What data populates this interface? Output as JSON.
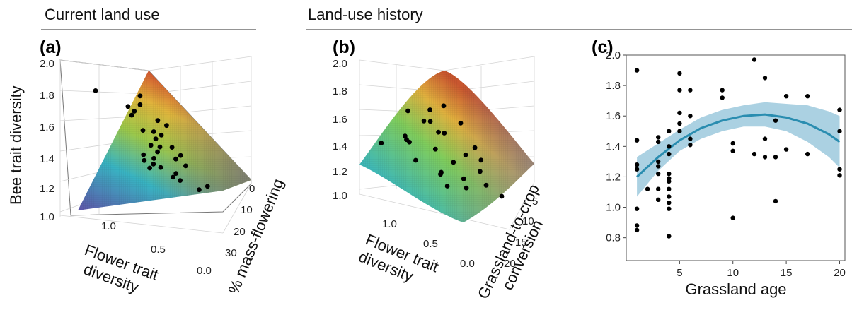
{
  "headers": {
    "current": "Current land use",
    "history": "Land-use history"
  },
  "panels": {
    "a": {
      "label": "(a)",
      "z_axis_title": "Bee trait diversity",
      "x_axis_title_line1": "Flower trait",
      "x_axis_title_line2": "diversity",
      "y_axis_title": "% mass-flowering",
      "z_ticks": [
        "1.0",
        "1.2",
        "1.4",
        "1.6",
        "1.8",
        "2.0"
      ],
      "x_ticks": [
        "1.0",
        "0.5",
        "0.0"
      ],
      "y_ticks": [
        "0",
        "10",
        "20",
        "30"
      ]
    },
    "b": {
      "label": "(b)",
      "x_axis_title_line1": "Flower trait",
      "x_axis_title_line2": "diversity",
      "y_axis_title_line1": "Grassland-to-crop",
      "y_axis_title_line2": "conversion",
      "z_ticks": [
        "1.0",
        "1.2",
        "1.4",
        "1.6",
        "1.8",
        "2.0"
      ],
      "x_ticks": [
        "1.0",
        "0.5",
        "0.0"
      ],
      "y_ticks": [
        "5",
        "10",
        "15",
        "20"
      ]
    },
    "c": {
      "label": "(c)",
      "x_axis_title": "Grassland age"
    }
  },
  "colors": {
    "line": "#2a8db0",
    "band": "#8fc1d8",
    "points": "#000000",
    "surface_low": "#5b5aa8",
    "surface_mid": "#3fb8a4",
    "surface_high": "#d65a32"
  },
  "chart_data": [
    {
      "type": "surface3d",
      "panel": "a",
      "xlabel": "Flower trait diversity",
      "ylabel": "% mass-flowering",
      "zlabel": "Bee trait diversity",
      "xlim": [
        0.0,
        1.2
      ],
      "ylim": [
        0,
        35
      ],
      "zlim": [
        1.0,
        2.0
      ],
      "surface_corners": {
        "x1.2_y0": 2.0,
        "x0_y0": 1.45,
        "x0_y35": 1.0,
        "x1.2_y35": 1.0
      },
      "points": [
        {
          "x": 0.62,
          "y": 8,
          "z": 1.73
        },
        {
          "x": 0.45,
          "y": 6,
          "z": 1.84
        },
        {
          "x": 0.35,
          "y": 4,
          "z": 1.78
        },
        {
          "x": 0.95,
          "y": 2,
          "z": 1.85
        },
        {
          "x": 0.3,
          "y": 12,
          "z": 1.65
        },
        {
          "x": 0.4,
          "y": 10,
          "z": 1.6
        },
        {
          "x": 0.55,
          "y": 14,
          "z": 1.55
        },
        {
          "x": 0.2,
          "y": 8,
          "z": 1.5
        },
        {
          "x": 0.25,
          "y": 16,
          "z": 1.45
        },
        {
          "x": 0.48,
          "y": 18,
          "z": 1.5
        },
        {
          "x": 0.15,
          "y": 2,
          "z": 1.4
        },
        {
          "x": 0.1,
          "y": 4,
          "z": 1.38
        },
        {
          "x": 0.08,
          "y": 6,
          "z": 1.36
        },
        {
          "x": 0.05,
          "y": 3,
          "z": 1.42
        },
        {
          "x": 0.12,
          "y": 1,
          "z": 1.44
        },
        {
          "x": 0.2,
          "y": 5,
          "z": 1.35
        },
        {
          "x": 0.35,
          "y": 20,
          "z": 1.38
        },
        {
          "x": 0.6,
          "y": 22,
          "z": 1.42
        },
        {
          "x": 0.7,
          "y": 18,
          "z": 1.46
        },
        {
          "x": 0.8,
          "y": 15,
          "z": 1.6
        },
        {
          "x": 0.75,
          "y": 10,
          "z": 1.7
        },
        {
          "x": 0.68,
          "y": 24,
          "z": 1.32
        },
        {
          "x": 0.9,
          "y": 20,
          "z": 1.5
        },
        {
          "x": 0.28,
          "y": 26,
          "z": 1.25
        },
        {
          "x": 0.5,
          "y": 28,
          "z": 1.22
        },
        {
          "x": 0.02,
          "y": 9,
          "z": 1.3
        },
        {
          "x": 0.3,
          "y": 9,
          "z": 1.68
        },
        {
          "x": 0.58,
          "y": 5,
          "z": 1.76
        },
        {
          "x": 0.42,
          "y": 13,
          "z": 1.58
        },
        {
          "x": 0.05,
          "y": 12,
          "z": 1.28
        }
      ]
    },
    {
      "type": "surface3d",
      "panel": "b",
      "xlabel": "Flower trait diversity",
      "ylabel": "Grassland-to-crop conversion",
      "zlabel": "Bee trait diversity",
      "xlim": [
        0.0,
        1.2
      ],
      "ylim": [
        2,
        22
      ],
      "zlim": [
        1.0,
        2.0
      ],
      "surface_corners": {
        "x1.2_y2": 1.25,
        "x1.2_y22": 1.95,
        "x0_y2": 1.3,
        "x0_y22": 1.05
      },
      "points": [
        {
          "x": 0.9,
          "y": 8,
          "z": 1.7
        },
        {
          "x": 0.7,
          "y": 10,
          "z": 1.72
        },
        {
          "x": 1.0,
          "y": 14,
          "z": 1.6
        },
        {
          "x": 0.6,
          "y": 12,
          "z": 1.55
        },
        {
          "x": 0.8,
          "y": 6,
          "z": 1.5
        },
        {
          "x": 1.1,
          "y": 5,
          "z": 1.45
        },
        {
          "x": 0.5,
          "y": 8,
          "z": 1.45
        },
        {
          "x": 0.4,
          "y": 14,
          "z": 1.4
        },
        {
          "x": 0.9,
          "y": 16,
          "z": 1.52
        },
        {
          "x": 0.7,
          "y": 18,
          "z": 1.6
        },
        {
          "x": 0.3,
          "y": 6,
          "z": 1.3
        },
        {
          "x": 0.2,
          "y": 10,
          "z": 1.25
        },
        {
          "x": 0.1,
          "y": 14,
          "z": 1.2
        },
        {
          "x": 0.4,
          "y": 18,
          "z": 1.35
        },
        {
          "x": 0.6,
          "y": 20,
          "z": 1.42
        },
        {
          "x": 0.2,
          "y": 4,
          "z": 1.3
        },
        {
          "x": 0.5,
          "y": 3,
          "z": 1.38
        },
        {
          "x": 1.0,
          "y": 19,
          "z": 1.7
        },
        {
          "x": 0.15,
          "y": 19,
          "z": 1.1
        },
        {
          "x": 0.3,
          "y": 16,
          "z": 1.28
        },
        {
          "x": 0.8,
          "y": 12,
          "z": 1.62
        },
        {
          "x": 0.05,
          "y": 8,
          "z": 1.2
        },
        {
          "x": 0.65,
          "y": 4,
          "z": 1.5
        },
        {
          "x": 1.15,
          "y": 12,
          "z": 1.48
        },
        {
          "x": 0.35,
          "y": 10,
          "z": 1.36
        },
        {
          "x": 0.1,
          "y": 4,
          "z": 1.22
        }
      ]
    },
    {
      "type": "scatter",
      "panel": "c",
      "xlabel": "Grassland age",
      "ylabel": "",
      "xlim": [
        0,
        20.5
      ],
      "ylim": [
        0.65,
        2.0
      ],
      "x_ticks": [
        5,
        10,
        15,
        20
      ],
      "y_ticks": [
        0.8,
        1.0,
        1.2,
        1.4,
        1.6,
        1.8,
        2.0
      ],
      "points": [
        {
          "x": 1,
          "y": 1.9
        },
        {
          "x": 1,
          "y": 1.44
        },
        {
          "x": 1,
          "y": 1.28
        },
        {
          "x": 1,
          "y": 1.25
        },
        {
          "x": 1,
          "y": 0.99
        },
        {
          "x": 1,
          "y": 0.88
        },
        {
          "x": 1,
          "y": 0.85
        },
        {
          "x": 2,
          "y": 1.12
        },
        {
          "x": 3,
          "y": 1.46
        },
        {
          "x": 3,
          "y": 1.43
        },
        {
          "x": 3,
          "y": 1.3
        },
        {
          "x": 3,
          "y": 1.27
        },
        {
          "x": 3,
          "y": 1.22
        },
        {
          "x": 3,
          "y": 1.12
        },
        {
          "x": 3,
          "y": 1.05
        },
        {
          "x": 4,
          "y": 1.5
        },
        {
          "x": 4,
          "y": 1.4
        },
        {
          "x": 4,
          "y": 1.35
        },
        {
          "x": 4,
          "y": 1.22
        },
        {
          "x": 4,
          "y": 1.19
        },
        {
          "x": 4,
          "y": 1.17
        },
        {
          "x": 4,
          "y": 1.12
        },
        {
          "x": 4,
          "y": 1.07
        },
        {
          "x": 4,
          "y": 1.03
        },
        {
          "x": 4,
          "y": 0.99
        },
        {
          "x": 4,
          "y": 0.81
        },
        {
          "x": 5,
          "y": 1.88
        },
        {
          "x": 5,
          "y": 1.77
        },
        {
          "x": 5,
          "y": 1.62
        },
        {
          "x": 5,
          "y": 1.55
        },
        {
          "x": 5,
          "y": 1.5
        },
        {
          "x": 6,
          "y": 1.77
        },
        {
          "x": 6,
          "y": 1.6
        },
        {
          "x": 6,
          "y": 1.45
        },
        {
          "x": 6,
          "y": 1.41
        },
        {
          "x": 9,
          "y": 1.77
        },
        {
          "x": 9,
          "y": 1.72
        },
        {
          "x": 10,
          "y": 1.42
        },
        {
          "x": 10,
          "y": 1.37
        },
        {
          "x": 10,
          "y": 0.93
        },
        {
          "x": 12,
          "y": 1.97
        },
        {
          "x": 12,
          "y": 1.35
        },
        {
          "x": 13,
          "y": 1.85
        },
        {
          "x": 13,
          "y": 1.45
        },
        {
          "x": 13,
          "y": 1.33
        },
        {
          "x": 14,
          "y": 1.57
        },
        {
          "x": 14,
          "y": 1.33
        },
        {
          "x": 14,
          "y": 1.04
        },
        {
          "x": 15,
          "y": 1.73
        },
        {
          "x": 15,
          "y": 1.38
        },
        {
          "x": 17,
          "y": 1.73
        },
        {
          "x": 17,
          "y": 1.35
        },
        {
          "x": 20,
          "y": 1.64
        },
        {
          "x": 20,
          "y": 1.5
        },
        {
          "x": 20,
          "y": 1.25
        },
        {
          "x": 20,
          "y": 1.21
        }
      ],
      "fit": {
        "x": [
          1,
          3,
          5,
          7,
          9,
          11,
          13,
          15,
          17,
          19,
          20
        ],
        "y": [
          1.2,
          1.33,
          1.44,
          1.52,
          1.57,
          1.6,
          1.61,
          1.59,
          1.55,
          1.48,
          1.43
        ],
        "lower": [
          1.07,
          1.24,
          1.37,
          1.45,
          1.5,
          1.53,
          1.53,
          1.5,
          1.43,
          1.33,
          1.26
        ],
        "upper": [
          1.33,
          1.42,
          1.51,
          1.59,
          1.64,
          1.67,
          1.69,
          1.68,
          1.67,
          1.63,
          1.6
        ]
      }
    }
  ]
}
